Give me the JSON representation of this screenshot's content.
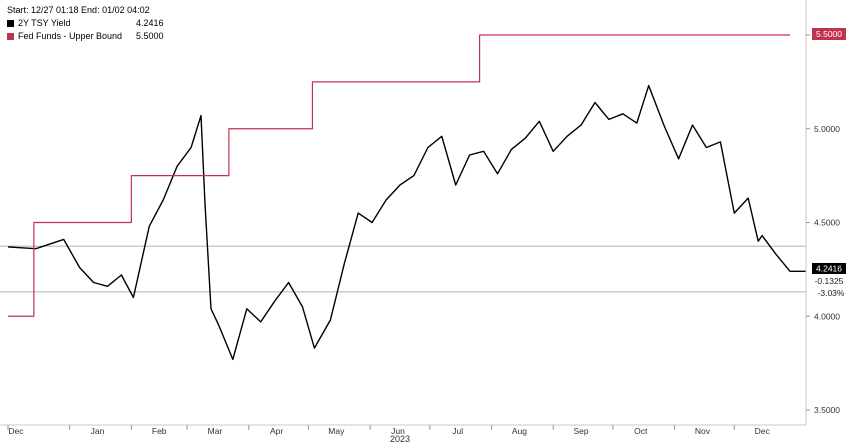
{
  "header": {
    "range_text": "Start: 12/27 01:18 End: 01/02 04:02"
  },
  "legend": [
    {
      "label": "2Y TSY Yield",
      "value": "4.2416",
      "color": "#000000"
    },
    {
      "label": "Fed Funds - Upper Bound",
      "value": "5.5000",
      "color": "#c0334f"
    }
  ],
  "last_value_tag": {
    "value": "4.2416",
    "change": "-0.1325",
    "change_pct": "-3.03%"
  },
  "fed_value_tag": {
    "value": "5.5000"
  },
  "chart_data": {
    "type": "line",
    "xaxis_year_label": "2023",
    "x_tick_labels": [
      "Dec",
      "Jan",
      "Feb",
      "Mar",
      "Apr",
      "May",
      "Jun",
      "Jul",
      "Aug",
      "Sep",
      "Oct",
      "Nov",
      "Dec"
    ],
    "y_tick_labels": [
      "3.5000",
      "4.0000",
      "4.5000",
      "5.0000",
      "5.5000"
    ],
    "ylim": [
      3.5,
      5.75
    ],
    "grid": false,
    "legend_position": "top-left",
    "reference_lines": [
      4.3741,
      4.13
    ],
    "series": [
      {
        "name": "2Y TSY Yield",
        "color": "#000000",
        "x": [
          "2022-12-01",
          "2022-12-15",
          "2022-12-29",
          "2023-01-06",
          "2023-01-13",
          "2023-01-20",
          "2023-01-27",
          "2023-02-02",
          "2023-02-10",
          "2023-02-17",
          "2023-02-24",
          "2023-03-03",
          "2023-03-08",
          "2023-03-10",
          "2023-03-13",
          "2023-03-17",
          "2023-03-24",
          "2023-03-31",
          "2023-04-07",
          "2023-04-14",
          "2023-04-21",
          "2023-04-28",
          "2023-05-04",
          "2023-05-12",
          "2023-05-19",
          "2023-05-26",
          "2023-06-02",
          "2023-06-09",
          "2023-06-16",
          "2023-06-23",
          "2023-06-30",
          "2023-07-07",
          "2023-07-14",
          "2023-07-21",
          "2023-07-28",
          "2023-08-04",
          "2023-08-11",
          "2023-08-18",
          "2023-08-25",
          "2023-09-01",
          "2023-09-08",
          "2023-09-15",
          "2023-09-22",
          "2023-09-29",
          "2023-10-06",
          "2023-10-13",
          "2023-10-19",
          "2023-10-27",
          "2023-11-03",
          "2023-11-10",
          "2023-11-17",
          "2023-11-24",
          "2023-12-01",
          "2023-12-08",
          "2023-12-13",
          "2023-12-15",
          "2023-12-22",
          "2023-12-29"
        ],
        "y": [
          4.37,
          4.36,
          4.41,
          4.26,
          4.18,
          4.16,
          4.22,
          4.1,
          4.48,
          4.62,
          4.8,
          4.9,
          5.07,
          4.6,
          4.04,
          3.95,
          3.77,
          4.04,
          3.97,
          4.08,
          4.18,
          4.05,
          3.83,
          3.98,
          4.28,
          4.55,
          4.5,
          4.62,
          4.7,
          4.75,
          4.9,
          4.96,
          4.7,
          4.86,
          4.88,
          4.76,
          4.89,
          4.95,
          5.04,
          4.88,
          4.96,
          5.02,
          5.14,
          5.05,
          5.08,
          5.03,
          5.23,
          5.01,
          4.84,
          5.02,
          4.9,
          4.93,
          4.55,
          4.63,
          4.4,
          4.43,
          4.33,
          4.24
        ]
      },
      {
        "name": "Fed Funds - Upper Bound",
        "color": "#c0334f",
        "x": [
          "2022-12-01",
          "2022-12-14",
          "2023-02-01",
          "2023-03-22",
          "2023-05-03",
          "2023-07-26",
          "2023-12-29"
        ],
        "y": [
          4.0,
          4.5,
          4.75,
          5.0,
          5.25,
          5.5,
          5.5
        ]
      }
    ]
  }
}
